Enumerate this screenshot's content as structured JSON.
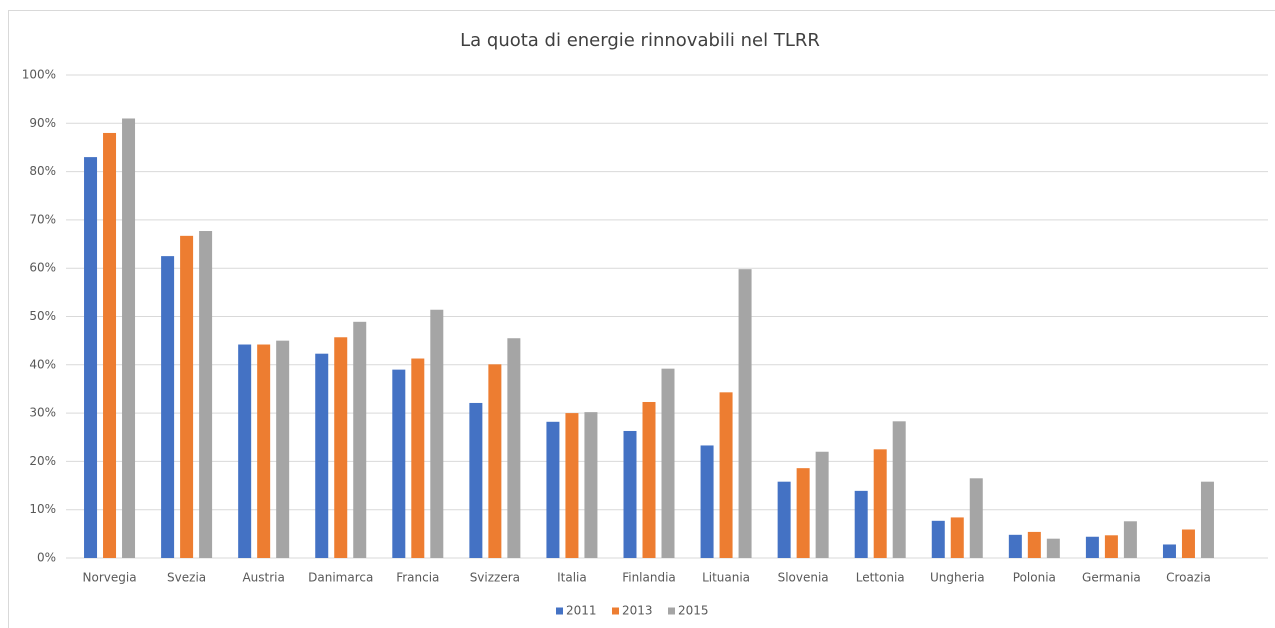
{
  "chart_data": {
    "type": "bar",
    "title": "La quota di energie rinnovabili nel TLRR",
    "categories": [
      "Norvegia",
      "Svezia",
      "Austria",
      "Danimarca",
      "Francia",
      "Svizzera",
      "Italia",
      "Finlandia",
      "Lituania",
      "Slovenia",
      "Lettonia",
      "Ungheria",
      "Polonia",
      "Germania",
      "Croazia"
    ],
    "series": [
      {
        "name": "2011",
        "color": "#4472c4",
        "values": [
          83,
          62.5,
          44.2,
          42.3,
          39,
          32.1,
          28.2,
          26.3,
          23.3,
          15.8,
          13.9,
          7.7,
          4.8,
          4.4,
          2.8
        ]
      },
      {
        "name": "2013",
        "color": "#ed7d31",
        "values": [
          88,
          66.7,
          44.2,
          45.7,
          41.3,
          40.1,
          30,
          32.3,
          34.3,
          18.6,
          22.5,
          8.4,
          5.4,
          4.7,
          5.9
        ]
      },
      {
        "name": "2015",
        "color": "#a5a5a5",
        "values": [
          91,
          67.7,
          45,
          48.9,
          51.4,
          45.5,
          30.2,
          39.2,
          59.8,
          22,
          28.3,
          16.5,
          4,
          7.6,
          15.8
        ]
      }
    ],
    "ylim": [
      0,
      100
    ],
    "yticks": [
      {
        "value": 0,
        "label": "0%"
      },
      {
        "value": 10,
        "label": "10%"
      },
      {
        "value": 20,
        "label": "20%"
      },
      {
        "value": 30,
        "label": "30%"
      },
      {
        "value": 40,
        "label": "40%"
      },
      {
        "value": 50,
        "label": "50%"
      },
      {
        "value": 60,
        "label": "60%"
      },
      {
        "value": 70,
        "label": "70%"
      },
      {
        "value": 80,
        "label": "80%"
      },
      {
        "value": 90,
        "label": "90%"
      },
      {
        "value": 100,
        "label": "100%"
      }
    ],
    "grid": true,
    "legend": "bottom"
  }
}
